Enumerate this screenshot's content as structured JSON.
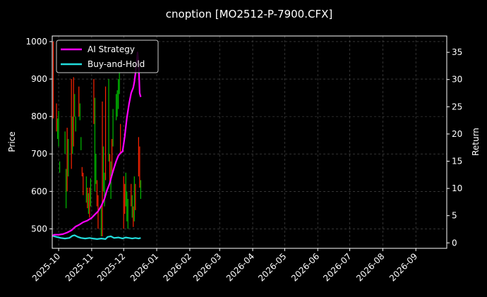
{
  "chart_data": {
    "type": "line",
    "title": "cnoption [MO2512-P-7900.CFX]",
    "ylabel_left": "Price",
    "ylabel_right": "Return",
    "xlim": [
      "2025-09-25",
      "2026-09-30"
    ],
    "ylim_left": [
      448,
      1015
    ],
    "ylim_right": [
      -1,
      38
    ],
    "x_ticks": [
      "2025-10",
      "2025-11",
      "2025-12",
      "2026-01",
      "2026-02",
      "2026-03",
      "2026-04",
      "2026-05",
      "2026-06",
      "2026-07",
      "2026-08",
      "2026-09"
    ],
    "x_tick_dates": [
      "2025-10-01",
      "2025-11-01",
      "2025-12-01",
      "2026-01-01",
      "2026-02-01",
      "2026-03-01",
      "2026-04-01",
      "2026-05-01",
      "2026-06-01",
      "2026-07-01",
      "2026-08-01",
      "2026-09-01"
    ],
    "y_ticks_left": [
      500,
      600,
      700,
      800,
      900,
      1000
    ],
    "y_ticks_right": [
      0,
      5,
      10,
      15,
      20,
      25,
      30,
      35
    ],
    "grid": true,
    "legend_position": "top-left",
    "colors": {
      "up": "#00bb00",
      "down": "#ff2200",
      "ai": "#ff00ff",
      "bh": "#22dddd",
      "grid": "#555555",
      "axis": "#ffffff"
    },
    "candles": [
      {
        "date": "2025-09-26",
        "high": 1000,
        "low": 795,
        "dir": "down"
      },
      {
        "date": "2025-09-29",
        "high": 835,
        "low": 760,
        "dir": "down"
      },
      {
        "date": "2025-09-30",
        "high": 795,
        "low": 740,
        "dir": "up"
      },
      {
        "date": "2025-10-01",
        "high": 815,
        "low": 720,
        "dir": "up"
      },
      {
        "date": "2025-10-02",
        "high": 680,
        "low": 650,
        "dir": "up"
      },
      {
        "date": "2025-10-07",
        "high": 760,
        "low": 700,
        "dir": "up"
      },
      {
        "date": "2025-10-08",
        "high": 660,
        "low": 555,
        "dir": "up"
      },
      {
        "date": "2025-10-09",
        "high": 770,
        "low": 600,
        "dir": "down"
      },
      {
        "date": "2025-10-10",
        "high": 740,
        "low": 640,
        "dir": "up"
      },
      {
        "date": "2025-10-13",
        "high": 900,
        "low": 660,
        "dir": "down"
      },
      {
        "date": "2025-10-14",
        "high": 800,
        "low": 700,
        "dir": "up"
      },
      {
        "date": "2025-10-15",
        "high": 905,
        "low": 720,
        "dir": "down"
      },
      {
        "date": "2025-10-16",
        "high": 860,
        "low": 800,
        "dir": "up"
      },
      {
        "date": "2025-10-17",
        "high": 800,
        "low": 760,
        "dir": "up"
      },
      {
        "date": "2025-10-20",
        "high": 880,
        "low": 800,
        "dir": "down"
      },
      {
        "date": "2025-10-21",
        "high": 835,
        "low": 790,
        "dir": "up"
      },
      {
        "date": "2025-10-22",
        "high": 745,
        "low": 710,
        "dir": "up"
      },
      {
        "date": "2025-10-23",
        "high": 665,
        "low": 640,
        "dir": "down"
      },
      {
        "date": "2025-10-24",
        "high": 650,
        "low": 590,
        "dir": "down"
      },
      {
        "date": "2025-10-27",
        "high": 640,
        "low": 570,
        "dir": "up"
      },
      {
        "date": "2025-10-28",
        "high": 610,
        "low": 555,
        "dir": "down"
      },
      {
        "date": "2025-10-29",
        "high": 595,
        "low": 540,
        "dir": "up"
      },
      {
        "date": "2025-10-30",
        "high": 610,
        "low": 530,
        "dir": "down"
      },
      {
        "date": "2025-10-31",
        "high": 635,
        "low": 560,
        "dir": "up"
      },
      {
        "date": "2025-11-03",
        "high": 900,
        "low": 780,
        "dir": "down"
      },
      {
        "date": "2025-11-04",
        "high": 850,
        "low": 600,
        "dir": "up"
      },
      {
        "date": "2025-11-05",
        "high": 700,
        "low": 620,
        "dir": "up"
      },
      {
        "date": "2025-11-06",
        "high": 630,
        "low": 560,
        "dir": "down"
      },
      {
        "date": "2025-11-07",
        "high": 590,
        "low": 500,
        "dir": "down"
      },
      {
        "date": "2025-11-10",
        "high": 560,
        "low": 480,
        "dir": "up"
      },
      {
        "date": "2025-11-11",
        "high": 840,
        "low": 480,
        "dir": "down"
      },
      {
        "date": "2025-11-12",
        "high": 720,
        "low": 600,
        "dir": "up"
      },
      {
        "date": "2025-11-13",
        "high": 650,
        "low": 560,
        "dir": "up"
      },
      {
        "date": "2025-11-14",
        "high": 880,
        "low": 630,
        "dir": "down"
      },
      {
        "date": "2025-11-17",
        "high": 900,
        "low": 680,
        "dir": "up"
      },
      {
        "date": "2025-11-18",
        "high": 700,
        "low": 620,
        "dir": "down"
      },
      {
        "date": "2025-11-19",
        "high": 680,
        "low": 580,
        "dir": "up"
      },
      {
        "date": "2025-11-20",
        "high": 740,
        "low": 640,
        "dir": "down"
      },
      {
        "date": "2025-11-21",
        "high": 820,
        "low": 720,
        "dir": "up"
      },
      {
        "date": "2025-11-24",
        "high": 860,
        "low": 790,
        "dir": "up"
      },
      {
        "date": "2025-11-25",
        "high": 870,
        "low": 800,
        "dir": "up"
      },
      {
        "date": "2025-11-26",
        "high": 900,
        "low": 820,
        "dir": "up"
      },
      {
        "date": "2025-11-27",
        "high": 920,
        "low": 860,
        "dir": "up"
      },
      {
        "date": "2025-11-28",
        "high": 780,
        "low": 700,
        "dir": "down"
      },
      {
        "date": "2025-12-01",
        "high": 640,
        "low": 500,
        "dir": "down"
      },
      {
        "date": "2025-12-02",
        "high": 620,
        "low": 540,
        "dir": "down"
      },
      {
        "date": "2025-12-03",
        "high": 650,
        "low": 560,
        "dir": "up"
      },
      {
        "date": "2025-12-04",
        "high": 600,
        "low": 520,
        "dir": "up"
      },
      {
        "date": "2025-12-05",
        "high": 580,
        "low": 500,
        "dir": "up"
      },
      {
        "date": "2025-12-08",
        "high": 620,
        "low": 560,
        "dir": "down"
      },
      {
        "date": "2025-12-09",
        "high": 590,
        "low": 530,
        "dir": "up"
      },
      {
        "date": "2025-12-10",
        "high": 560,
        "low": 505,
        "dir": "down"
      },
      {
        "date": "2025-12-11",
        "high": 640,
        "low": 520,
        "dir": "up"
      },
      {
        "date": "2025-12-12",
        "high": 620,
        "low": 550,
        "dir": "down"
      },
      {
        "date": "2025-12-15",
        "high": 745,
        "low": 640,
        "dir": "down"
      },
      {
        "date": "2025-12-16",
        "high": 720,
        "low": 610,
        "dir": "down"
      },
      {
        "date": "2025-12-17",
        "high": 630,
        "low": 580,
        "dir": "up"
      }
    ],
    "series": [
      {
        "name": "AI Strategy",
        "axis": "right",
        "dates": [
          "2025-09-25",
          "2025-09-27",
          "2025-10-01",
          "2025-10-05",
          "2025-10-09",
          "2025-10-13",
          "2025-10-17",
          "2025-10-20",
          "2025-10-24",
          "2025-10-28",
          "2025-11-01",
          "2025-11-04",
          "2025-11-07",
          "2025-11-10",
          "2025-11-13",
          "2025-11-15",
          "2025-11-18",
          "2025-11-20",
          "2025-11-22",
          "2025-11-24",
          "2025-11-26",
          "2025-11-28",
          "2025-11-30",
          "2025-12-02",
          "2025-12-04",
          "2025-12-06",
          "2025-12-08",
          "2025-12-10",
          "2025-12-11",
          "2025-12-12",
          "2025-12-13",
          "2025-12-14",
          "2025-12-15",
          "2025-12-16",
          "2025-12-17"
        ],
        "values": [
          1.3,
          1.5,
          1.5,
          1.6,
          1.9,
          2.3,
          3.0,
          3.3,
          3.8,
          4.1,
          4.6,
          5.2,
          5.8,
          6.8,
          8.1,
          9.5,
          11.0,
          12.5,
          13.8,
          15.0,
          16.0,
          16.5,
          16.8,
          19.5,
          23.0,
          25.5,
          27.5,
          28.5,
          29.5,
          31.0,
          33.0,
          35.0,
          33.0,
          27.5,
          26.8
        ]
      },
      {
        "name": "Buy-and-Hold",
        "axis": "right",
        "dates": [
          "2025-09-25",
          "2025-09-29",
          "2025-10-03",
          "2025-10-07",
          "2025-10-11",
          "2025-10-14",
          "2025-10-16",
          "2025-10-19",
          "2025-10-22",
          "2025-10-26",
          "2025-10-30",
          "2025-11-02",
          "2025-11-06",
          "2025-11-10",
          "2025-11-14",
          "2025-11-16",
          "2025-11-19",
          "2025-11-22",
          "2025-11-26",
          "2025-11-30",
          "2025-12-03",
          "2025-12-06",
          "2025-12-09",
          "2025-12-12",
          "2025-12-15",
          "2025-12-17"
        ],
        "values": [
          1.3,
          1.1,
          0.9,
          0.8,
          0.9,
          1.3,
          1.4,
          1.1,
          0.9,
          0.8,
          0.9,
          0.8,
          0.7,
          0.8,
          0.7,
          1.1,
          1.2,
          0.9,
          1.0,
          0.8,
          1.0,
          0.9,
          0.8,
          0.9,
          0.8,
          0.9
        ]
      }
    ]
  }
}
